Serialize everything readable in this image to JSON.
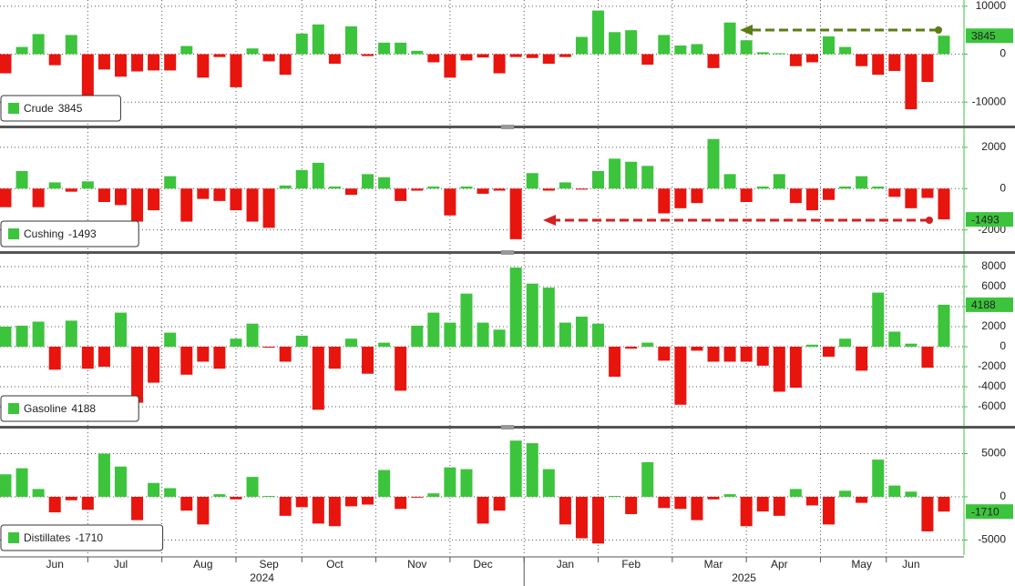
{
  "x_axis": {
    "categories": [
      null,
      null,
      null,
      "Jun",
      null,
      null,
      null,
      "Jul",
      null,
      null,
      null,
      null,
      "Aug",
      null,
      null,
      null,
      "Sep",
      null,
      null,
      null,
      "Oct",
      null,
      null,
      null,
      null,
      "Nov",
      null,
      null,
      null,
      "Dec",
      null,
      null,
      null,
      null,
      "Jan",
      null,
      null,
      null,
      "Feb",
      null,
      null,
      null,
      null,
      "Mar",
      null,
      null,
      null,
      "Apr",
      null,
      null,
      null,
      null,
      "May",
      null,
      null,
      "Jun",
      null,
      null
    ],
    "years": [
      "2024",
      "2025"
    ]
  },
  "chart_data": [
    {
      "type": "bar",
      "color_positive": "#3cc43c",
      "color_negative": "#e8140e",
      "grid": true,
      "ylim": [
        -14900,
        11300
      ],
      "yticks": [
        -10000,
        0,
        10000
      ],
      "series": [
        {
          "name": "Crude",
          "values": [
            -4000,
            1500,
            4200,
            -2300,
            4000,
            -9700,
            -3200,
            -4700,
            -3600,
            -3400,
            -3400,
            1700,
            -4900,
            -600,
            -6900,
            1200,
            -1500,
            -4300,
            4300,
            6200,
            -2000,
            5800,
            -400,
            2400,
            2400,
            700,
            -1700,
            -4900,
            -1300,
            -700,
            -4000,
            -600,
            -800,
            -2000,
            -600,
            3600,
            9100,
            4600,
            5000,
            -2200,
            4000,
            1800,
            2100,
            -2900,
            6600,
            2900,
            400,
            200,
            -2500,
            -1700,
            3700,
            1500,
            -2500,
            -4300,
            -3500,
            -11500,
            -5800,
            3845
          ]
        }
      ]
    },
    {
      "type": "bar",
      "color_positive": "#3cc43c",
      "color_negative": "#e8140e",
      "grid": true,
      "ylim": [
        -3030,
        2920
      ],
      "yticks": [
        -2000,
        0,
        2000
      ],
      "series": [
        {
          "name": "Cushing",
          "values": [
            -900,
            850,
            -900,
            300,
            -150,
            350,
            -650,
            -800,
            -1600,
            -1050,
            600,
            -1600,
            -500,
            -600,
            -1050,
            -1600,
            -1900,
            150,
            900,
            1250,
            100,
            -300,
            700,
            550,
            -600,
            -100,
            100,
            -1300,
            100,
            -250,
            -100,
            -2450,
            750,
            -100,
            300,
            -50,
            850,
            1450,
            1300,
            1100,
            -1200,
            -950,
            -700,
            2400,
            700,
            -650,
            100,
            700,
            -700,
            -1050,
            -550,
            100,
            600,
            100,
            -400,
            -950,
            -450,
            -1493
          ]
        }
      ]
    },
    {
      "type": "bar",
      "color_positive": "#3cc43c",
      "color_negative": "#e8140e",
      "grid": true,
      "ylim": [
        -7910,
        9270
      ],
      "yticks": [
        -6000,
        -4000,
        -2000,
        0,
        2000,
        4000,
        6000,
        8000
      ],
      "series": [
        {
          "name": "Gasoline",
          "values": [
            2000,
            2100,
            2500,
            -2300,
            2600,
            -2200,
            -2000,
            3400,
            -5600,
            -3600,
            1400,
            -2800,
            -1500,
            -2200,
            800,
            2300,
            -100,
            -1500,
            1100,
            -6300,
            -2200,
            800,
            -2700,
            400,
            -4400,
            2100,
            3400,
            2400,
            5300,
            2400,
            1700,
            7900,
            6300,
            5900,
            2400,
            3000,
            2300,
            -3000,
            -200,
            400,
            -1400,
            -5800,
            -400,
            -1500,
            -1500,
            -1500,
            -1900,
            -4500,
            -4100,
            200,
            -1000,
            800,
            -2400,
            5400,
            1500,
            300,
            -2100,
            4188
          ]
        }
      ]
    },
    {
      "type": "bar",
      "color_positive": "#3cc43c",
      "color_negative": "#e8140e",
      "grid": true,
      "ylim": [
        -6740,
        7890
      ],
      "yticks": [
        -5000,
        0,
        5000
      ],
      "series": [
        {
          "name": "Distillates",
          "values": [
            2600,
            3300,
            900,
            -1800,
            -400,
            -1500,
            5000,
            3500,
            -2700,
            1600,
            1000,
            -1600,
            -3200,
            300,
            -300,
            2300,
            100,
            -2200,
            -1200,
            -3100,
            -3400,
            -1100,
            -900,
            3100,
            -1400,
            -100,
            400,
            3400,
            3200,
            -3100,
            -1600,
            6500,
            6200,
            3200,
            -3200,
            -4800,
            -5400,
            100,
            -2000,
            4000,
            -1300,
            -1400,
            -2700,
            -300,
            300,
            -3400,
            -1700,
            -2200,
            900,
            -1000,
            -3200,
            700,
            -700,
            4300,
            1300,
            600,
            -4000,
            -1710
          ]
        }
      ]
    }
  ]
}
